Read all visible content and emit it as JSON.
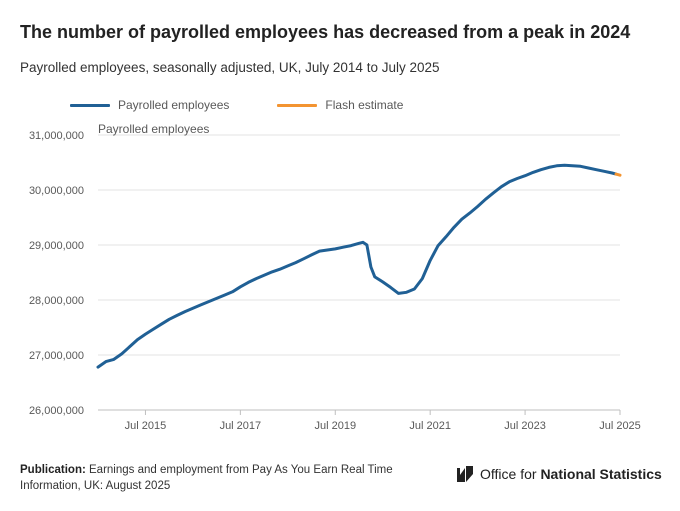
{
  "header": {
    "title": "The number of payrolled employees has decreased from a peak in 2024",
    "subtitle": "Payrolled employees, seasonally adjusted, UK, July 2014 to July 2025"
  },
  "legend": {
    "items": [
      {
        "label": "Payrolled employees",
        "color": "#206095"
      },
      {
        "label": "Flash estimate",
        "color": "#f39431"
      }
    ]
  },
  "footer": {
    "publication_label": "Publication:",
    "publication_text": "Earnings and employment from Pay As You Earn Real Time Information, UK: August 2025",
    "brand_prefix": "Office for ",
    "brand_strong": "National Statistics",
    "logo_icon": "ons-logo-icon"
  },
  "chart_data": {
    "type": "line",
    "ylabel": "Payrolled employees",
    "ylim": [
      26000000,
      31000000
    ],
    "yticks": [
      {
        "value": 26000000,
        "label": "26,000,000"
      },
      {
        "value": 27000000,
        "label": "27,000,000"
      },
      {
        "value": 28000000,
        "label": "28,000,000"
      },
      {
        "value": 29000000,
        "label": "29,000,000"
      },
      {
        "value": 30000000,
        "label": "30,000,000"
      },
      {
        "value": 31000000,
        "label": "31,000,000"
      }
    ],
    "xlim": [
      "2014-07",
      "2025-07"
    ],
    "xticks": [
      {
        "value": "2015-07",
        "label": "Jul 2015"
      },
      {
        "value": "2017-07",
        "label": "Jul 2017"
      },
      {
        "value": "2019-07",
        "label": "Jul 2019"
      },
      {
        "value": "2021-07",
        "label": "Jul 2021"
      },
      {
        "value": "2023-07",
        "label": "Jul 2023"
      },
      {
        "value": "2025-07",
        "label": "Jul 2025"
      }
    ],
    "grid": true,
    "legend_position": "top-left",
    "series": [
      {
        "name": "Payrolled employees",
        "color": "#206095",
        "points": [
          [
            "2014-07",
            26780000
          ],
          [
            "2014-09",
            26880000
          ],
          [
            "2014-11",
            26920000
          ],
          [
            "2015-01",
            27020000
          ],
          [
            "2015-03",
            27150000
          ],
          [
            "2015-05",
            27280000
          ],
          [
            "2015-07",
            27380000
          ],
          [
            "2015-09",
            27470000
          ],
          [
            "2015-11",
            27560000
          ],
          [
            "2016-01",
            27650000
          ],
          [
            "2016-03",
            27720000
          ],
          [
            "2016-05",
            27790000
          ],
          [
            "2016-07",
            27850000
          ],
          [
            "2016-09",
            27910000
          ],
          [
            "2016-11",
            27970000
          ],
          [
            "2017-01",
            28030000
          ],
          [
            "2017-03",
            28090000
          ],
          [
            "2017-05",
            28150000
          ],
          [
            "2017-07",
            28240000
          ],
          [
            "2017-09",
            28320000
          ],
          [
            "2017-11",
            28390000
          ],
          [
            "2018-01",
            28450000
          ],
          [
            "2018-03",
            28510000
          ],
          [
            "2018-05",
            28560000
          ],
          [
            "2018-07",
            28620000
          ],
          [
            "2018-09",
            28680000
          ],
          [
            "2018-11",
            28750000
          ],
          [
            "2019-01",
            28820000
          ],
          [
            "2019-03",
            28890000
          ],
          [
            "2019-05",
            28910000
          ],
          [
            "2019-07",
            28930000
          ],
          [
            "2019-09",
            28960000
          ],
          [
            "2019-11",
            28990000
          ],
          [
            "2020-01",
            29030000
          ],
          [
            "2020-02",
            29050000
          ],
          [
            "2020-03",
            29000000
          ],
          [
            "2020-04",
            28600000
          ],
          [
            "2020-05",
            28420000
          ],
          [
            "2020-07",
            28330000
          ],
          [
            "2020-09",
            28230000
          ],
          [
            "2020-11",
            28120000
          ],
          [
            "2021-01",
            28140000
          ],
          [
            "2021-03",
            28200000
          ],
          [
            "2021-05",
            28390000
          ],
          [
            "2021-07",
            28720000
          ],
          [
            "2021-09",
            28990000
          ],
          [
            "2021-11",
            29150000
          ],
          [
            "2022-01",
            29320000
          ],
          [
            "2022-03",
            29470000
          ],
          [
            "2022-05",
            29580000
          ],
          [
            "2022-07",
            29700000
          ],
          [
            "2022-09",
            29830000
          ],
          [
            "2022-11",
            29950000
          ],
          [
            "2023-01",
            30060000
          ],
          [
            "2023-03",
            30150000
          ],
          [
            "2023-05",
            30210000
          ],
          [
            "2023-07",
            30260000
          ],
          [
            "2023-09",
            30320000
          ],
          [
            "2023-11",
            30370000
          ],
          [
            "2024-01",
            30410000
          ],
          [
            "2024-03",
            30440000
          ],
          [
            "2024-05",
            30450000
          ],
          [
            "2024-07",
            30440000
          ],
          [
            "2024-09",
            30430000
          ],
          [
            "2024-11",
            30400000
          ],
          [
            "2025-01",
            30370000
          ],
          [
            "2025-03",
            30340000
          ],
          [
            "2025-05",
            30310000
          ],
          [
            "2025-06",
            30290000
          ]
        ]
      },
      {
        "name": "Flash estimate",
        "color": "#f39431",
        "points": [
          [
            "2025-06",
            30290000
          ],
          [
            "2025-07",
            30270000
          ]
        ]
      }
    ]
  }
}
